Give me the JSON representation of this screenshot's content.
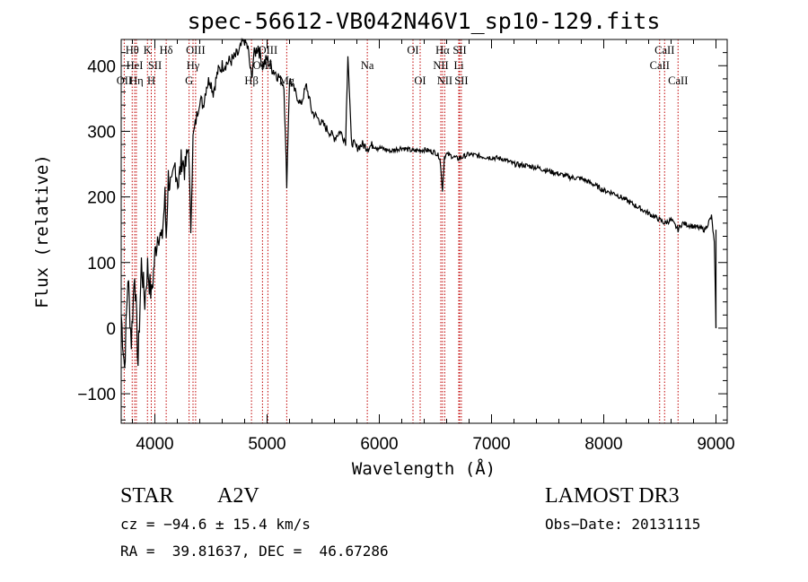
{
  "chart_data": {
    "type": "line",
    "title": "spec-56612-VB042N46V1_sp10-129.fits",
    "xlabel": "Wavelength (Å)",
    "ylabel": "Flux (relative)",
    "xlim": [
      3700,
      9100
    ],
    "ylim": [
      -145,
      440
    ],
    "x_ticks": [
      4000,
      5000,
      6000,
      7000,
      8000,
      9000
    ],
    "y_ticks": [
      -100,
      0,
      100,
      200,
      300,
      400
    ],
    "line_color": "#c00000",
    "series": [
      {
        "name": "flux",
        "x": [
          3700,
          3730,
          3760,
          3790,
          3820,
          3850,
          3880,
          3910,
          3935,
          3950,
          3970,
          4000,
          4030,
          4060,
          4090,
          4101,
          4120,
          4150,
          4180,
          4210,
          4240,
          4270,
          4300,
          4320,
          4340,
          4360,
          4380,
          4400,
          4430,
          4460,
          4490,
          4520,
          4560,
          4600,
          4650,
          4700,
          4750,
          4780,
          4800,
          4830,
          4861,
          4880,
          4920,
          4960,
          5000,
          5050,
          5100,
          5150,
          5175,
          5200,
          5250,
          5300,
          5350,
          5400,
          5450,
          5500,
          5550,
          5600,
          5650,
          5700,
          5720,
          5750,
          5800,
          5850,
          5893,
          5950,
          6000,
          6100,
          6200,
          6300,
          6400,
          6500,
          6540,
          6563,
          6580,
          6600,
          6650,
          6700,
          6800,
          6900,
          7000,
          7100,
          7200,
          7300,
          7400,
          7500,
          7600,
          7700,
          7800,
          7900,
          8000,
          8100,
          8200,
          8300,
          8400,
          8500,
          8542,
          8600,
          8662,
          8700,
          8800,
          8900,
          8960,
          8985,
          9000
        ],
        "y": [
          20,
          -60,
          80,
          -20,
          90,
          -55,
          100,
          40,
          95,
          70,
          50,
          110,
          150,
          130,
          200,
          140,
          230,
          210,
          250,
          220,
          260,
          240,
          280,
          150,
          290,
          310,
          330,
          350,
          340,
          370,
          380,
          360,
          390,
          400,
          405,
          410,
          420,
          435,
          440,
          425,
          380,
          415,
          430,
          400,
          410,
          395,
          385,
          370,
          220,
          380,
          360,
          340,
          370,
          330,
          320,
          310,
          300,
          290,
          300,
          285,
          420,
          285,
          275,
          280,
          275,
          280,
          275,
          270,
          275,
          270,
          272,
          268,
          260,
          210,
          262,
          265,
          262,
          258,
          265,
          262,
          260,
          258,
          250,
          248,
          245,
          240,
          235,
          230,
          228,
          220,
          210,
          205,
          195,
          185,
          175,
          165,
          160,
          165,
          150,
          160,
          155,
          150,
          170,
          130,
          0
        ]
      }
    ],
    "spectral_lines": [
      {
        "name": "Hθ",
        "wavelength": 3798,
        "row": 0
      },
      {
        "name": "OII",
        "wavelength": 3727,
        "row": 2
      },
      {
        "name": "HeI",
        "wavelength": 3820,
        "row": 1
      },
      {
        "name": "Hη",
        "wavelength": 3835,
        "row": 2
      },
      {
        "name": "K",
        "wavelength": 3934,
        "row": 0
      },
      {
        "name": "SII",
        "wavelength": 4000,
        "row": 1
      },
      {
        "name": "H",
        "wavelength": 3968,
        "row": 2
      },
      {
        "name": "Hδ",
        "wavelength": 4101,
        "row": 0
      },
      {
        "name": "OIII",
        "wavelength": 4363,
        "row": 0
      },
      {
        "name": "Hγ",
        "wavelength": 4340,
        "row": 1
      },
      {
        "name": "G",
        "wavelength": 4305,
        "row": 2
      },
      {
        "name": "Hβ",
        "wavelength": 4861,
        "row": 2
      },
      {
        "name": "OIII",
        "wavelength": 5007,
        "row": 0
      },
      {
        "name": "OIII",
        "wavelength": 4959,
        "row": 1
      },
      {
        "name": "Mg",
        "wavelength": 5175,
        "row": 2
      },
      {
        "name": "Na",
        "wavelength": 5893,
        "row": 1
      },
      {
        "name": "OI",
        "wavelength": 6300,
        "row": 0
      },
      {
        "name": "OI",
        "wavelength": 6364,
        "row": 2
      },
      {
        "name": "Hα",
        "wavelength": 6563,
        "row": 0
      },
      {
        "name": "NII",
        "wavelength": 6548,
        "row": 1
      },
      {
        "name": "NII",
        "wavelength": 6583,
        "row": 2
      },
      {
        "name": "SII",
        "wavelength": 6716,
        "row": 0
      },
      {
        "name": "Li",
        "wavelength": 6708,
        "row": 1
      },
      {
        "name": "SII",
        "wavelength": 6731,
        "row": 2
      },
      {
        "name": "CaII",
        "wavelength": 8542,
        "row": 0
      },
      {
        "name": "CaII",
        "wavelength": 8498,
        "row": 1
      },
      {
        "name": "CaII",
        "wavelength": 8662,
        "row": 2
      }
    ]
  },
  "info": {
    "object_class": "STAR",
    "subclass": "A2V",
    "survey": "LAMOST DR3",
    "cz": "cz = −94.6 ± 15.4 km/s",
    "obs_date": "Obs−Date: 20131115",
    "coords": "RA =  39.81637, DEC =  46.67286"
  }
}
